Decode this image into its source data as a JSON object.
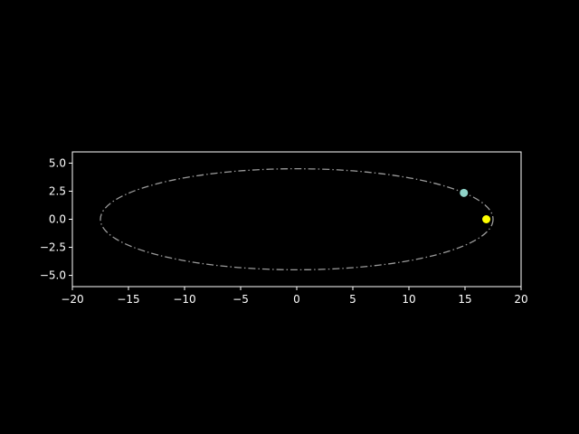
{
  "chart_data": {
    "type": "scatter",
    "title": "",
    "xlabel": "",
    "ylabel": "",
    "xlim": [
      -20,
      20
    ],
    "ylim": [
      -6,
      6
    ],
    "x_ticks": [
      -20,
      -15,
      -10,
      -5,
      0,
      5,
      10,
      15,
      20
    ],
    "x_tick_labels": [
      "−20",
      "−15",
      "−10",
      "−5",
      "0",
      "5",
      "10",
      "15",
      "20"
    ],
    "y_ticks": [
      5.0,
      2.5,
      0.0,
      -2.5,
      -5.0
    ],
    "y_tick_labels": [
      "5.0",
      "2.5",
      "0.0",
      "−2.5",
      "−5.0"
    ],
    "grid": false,
    "orbit": {
      "center": [
        0,
        0
      ],
      "semi_major_axis": 17.5,
      "semi_minor_axis": 4.5,
      "line_style": "dash-dot",
      "color": "#9a9a9a"
    },
    "points": [
      {
        "x": 14.9,
        "y": 2.35,
        "color": "#8fd3c8"
      },
      {
        "x": 16.9,
        "y": 0.0,
        "color": "#ffff00"
      }
    ],
    "colors": {
      "background": "#000000",
      "axes": "#ffffff",
      "text": "#ffffff"
    }
  }
}
